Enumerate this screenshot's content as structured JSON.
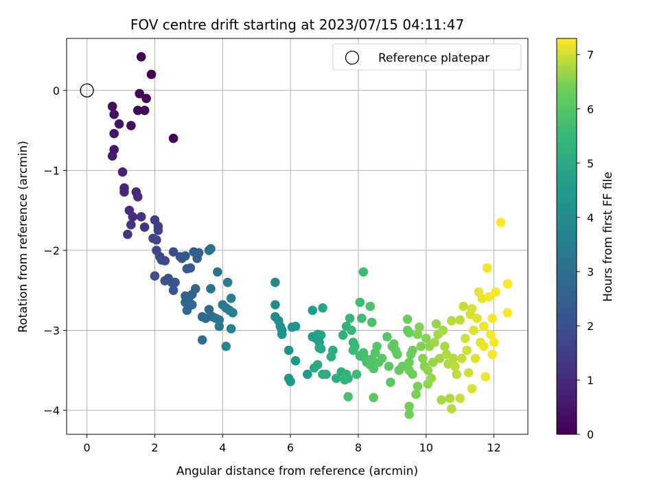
{
  "chart_data": {
    "type": "scatter",
    "title": "FOV centre drift starting at 2023/07/15 04:11:47",
    "xlabel": "Angular distance from reference (arcmin)",
    "ylabel": "Rotation from reference (arcmin)",
    "xlim": [
      -0.6,
      13.0
    ],
    "ylim": [
      -4.3,
      0.65
    ],
    "xticks": [
      0,
      2,
      4,
      6,
      8,
      10,
      12
    ],
    "yticks": [
      0,
      -1,
      -2,
      -3,
      -4
    ],
    "xtick_labels": [
      "0",
      "2",
      "4",
      "6",
      "8",
      "10",
      "12"
    ],
    "ytick_labels": [
      "0",
      "−1",
      "−2",
      "−3",
      "−4"
    ],
    "grid": true,
    "legend": {
      "placement": "top-right",
      "entries": [
        {
          "label": "Reference platepar",
          "marker": "open-circle"
        }
      ]
    },
    "reference_point": {
      "x": 0,
      "y": 0
    },
    "colorbar": {
      "label": "Hours from first FF file",
      "range": [
        0,
        7.3
      ],
      "ticks": [
        0,
        1,
        2,
        3,
        4,
        5,
        6,
        7
      ],
      "tick_labels": [
        "0",
        "1",
        "2",
        "3",
        "4",
        "5",
        "6",
        "7"
      ],
      "colormap": "viridis"
    },
    "series": [
      {
        "points": [
          [
            1.6,
            0.42,
            0.02
          ],
          [
            1.9,
            0.2,
            0.04
          ],
          [
            2.55,
            -0.6,
            0.06
          ],
          [
            1.55,
            -0.04,
            0.08
          ],
          [
            1.75,
            -0.1,
            0.1
          ],
          [
            1.7,
            -0.25,
            0.12
          ],
          [
            1.5,
            -0.25,
            0.14
          ],
          [
            1.3,
            -0.44,
            0.3
          ],
          [
            0.75,
            -0.2,
            0.35
          ],
          [
            0.8,
            -0.3,
            0.4
          ],
          [
            0.95,
            -0.42,
            0.45
          ],
          [
            0.8,
            -0.54,
            0.5
          ],
          [
            0.8,
            -0.74,
            0.55
          ],
          [
            0.75,
            -0.82,
            0.6
          ],
          [
            1.05,
            -1.02,
            0.8
          ],
          [
            1.1,
            -1.22,
            0.85
          ],
          [
            1.1,
            -1.27,
            0.9
          ],
          [
            1.45,
            -1.27,
            0.95
          ],
          [
            1.5,
            -1.33,
            1.0
          ],
          [
            1.25,
            -1.5,
            1.05
          ],
          [
            1.35,
            -1.58,
            1.1
          ],
          [
            1.6,
            -1.58,
            1.15
          ],
          [
            1.3,
            -1.68,
            1.2
          ],
          [
            1.7,
            -1.71,
            1.25
          ],
          [
            1.2,
            -1.8,
            1.3
          ],
          [
            2.0,
            -1.62,
            1.5
          ],
          [
            2.1,
            -1.7,
            1.55
          ],
          [
            2.1,
            -1.75,
            1.6
          ],
          [
            1.95,
            -1.85,
            1.65
          ],
          [
            2.05,
            -1.87,
            1.7
          ],
          [
            2.05,
            -2.0,
            1.75
          ],
          [
            2.15,
            -2.08,
            1.8
          ],
          [
            2.2,
            -2.12,
            1.85
          ],
          [
            2.3,
            -2.13,
            1.9
          ],
          [
            2.55,
            -2.02,
            1.95
          ],
          [
            2.0,
            -2.32,
            2.0
          ],
          [
            2.3,
            -2.38,
            2.05
          ],
          [
            2.4,
            -2.35,
            2.05
          ],
          [
            2.5,
            -2.4,
            2.1
          ],
          [
            2.6,
            -2.4,
            2.15
          ],
          [
            2.55,
            -2.5,
            2.15
          ],
          [
            2.75,
            -2.08,
            2.2
          ],
          [
            2.8,
            -2.1,
            2.25
          ],
          [
            2.9,
            -2.07,
            2.3
          ],
          [
            2.95,
            -2.23,
            2.35
          ],
          [
            3.05,
            -2.22,
            2.35
          ],
          [
            3.15,
            -2.02,
            2.4
          ],
          [
            3.3,
            -2.03,
            2.45
          ],
          [
            3.25,
            -2.1,
            2.5
          ],
          [
            2.9,
            -2.57,
            2.55
          ],
          [
            3.0,
            -2.6,
            2.55
          ],
          [
            3.1,
            -2.55,
            2.6
          ],
          [
            3.2,
            -2.48,
            2.6
          ],
          [
            2.9,
            -2.65,
            2.65
          ],
          [
            3.0,
            -2.65,
            2.65
          ],
          [
            3.1,
            -2.68,
            2.7
          ],
          [
            2.95,
            -2.75,
            2.7
          ],
          [
            3.4,
            -2.83,
            2.75
          ],
          [
            3.5,
            -2.85,
            2.8
          ],
          [
            3.6,
            -2.74,
            2.85
          ],
          [
            3.7,
            -2.83,
            2.9
          ],
          [
            3.4,
            -3.12,
            2.95
          ],
          [
            3.6,
            -2.0,
            3.0
          ],
          [
            3.65,
            -1.98,
            3.05
          ],
          [
            3.65,
            -2.48,
            3.1
          ],
          [
            3.85,
            -2.27,
            3.15
          ],
          [
            3.8,
            -2.85,
            3.2
          ],
          [
            3.9,
            -2.87,
            3.25
          ],
          [
            3.9,
            -2.95,
            3.3
          ],
          [
            4.0,
            -2.68,
            3.35
          ],
          [
            4.1,
            -2.72,
            3.4
          ],
          [
            4.15,
            -2.4,
            3.45
          ],
          [
            4.25,
            -2.6,
            3.5
          ],
          [
            4.2,
            -2.75,
            3.55
          ],
          [
            4.3,
            -2.78,
            3.6
          ],
          [
            4.25,
            -2.98,
            3.65
          ],
          [
            4.1,
            -3.2,
            3.7
          ],
          [
            5.55,
            -2.4,
            3.85
          ],
          [
            5.55,
            -2.68,
            3.9
          ],
          [
            5.55,
            -2.83,
            3.95
          ],
          [
            5.65,
            -2.88,
            4.0
          ],
          [
            5.7,
            -2.95,
            4.05
          ],
          [
            5.75,
            -3.0,
            4.1
          ],
          [
            5.75,
            -3.05,
            4.15
          ],
          [
            5.95,
            -3.25,
            4.2
          ],
          [
            6.05,
            -2.96,
            4.25
          ],
          [
            6.15,
            -2.95,
            4.3
          ],
          [
            6.15,
            -3.38,
            4.35
          ],
          [
            5.95,
            -3.6,
            4.4
          ],
          [
            6.0,
            -3.64,
            4.45
          ],
          [
            6.5,
            -3.55,
            4.5
          ],
          [
            6.65,
            -2.75,
            4.55
          ],
          [
            6.65,
            -3.08,
            4.6
          ],
          [
            6.75,
            -3.1,
            4.65
          ],
          [
            6.8,
            -3.05,
            4.7
          ],
          [
            6.85,
            -3.15,
            4.7
          ],
          [
            6.9,
            -3.06,
            4.75
          ],
          [
            6.95,
            -2.72,
            4.8
          ],
          [
            6.85,
            -3.22,
            4.85
          ],
          [
            6.9,
            -3.23,
            4.9
          ],
          [
            6.7,
            -3.47,
            4.95
          ],
          [
            6.8,
            -3.43,
            5.0
          ],
          [
            6.95,
            -3.55,
            5.0
          ],
          [
            7.05,
            -3.55,
            5.05
          ],
          [
            7.2,
            -3.33,
            5.1
          ],
          [
            7.25,
            -3.25,
            5.15
          ],
          [
            7.35,
            -3.6,
            5.15
          ],
          [
            7.5,
            -3.52,
            5.2
          ],
          [
            7.6,
            -3.62,
            5.25
          ],
          [
            7.55,
            -3.06,
            5.3
          ],
          [
            7.65,
            -2.95,
            5.3
          ],
          [
            7.65,
            -3.55,
            5.35
          ],
          [
            7.7,
            -3.6,
            5.4
          ],
          [
            7.75,
            -2.85,
            5.45
          ],
          [
            7.8,
            -3.0,
            5.45
          ],
          [
            7.85,
            -3.15,
            5.5
          ],
          [
            7.9,
            -3.2,
            5.5
          ],
          [
            7.85,
            -3.25,
            5.55
          ],
          [
            7.95,
            -3.55,
            5.6
          ],
          [
            8.05,
            -2.65,
            5.6
          ],
          [
            8.1,
            -2.85,
            5.65
          ],
          [
            8.15,
            -2.27,
            5.65
          ],
          [
            8.05,
            -3.32,
            5.7
          ],
          [
            8.15,
            -3.28,
            5.75
          ],
          [
            8.2,
            -3.35,
            5.75
          ],
          [
            8.25,
            -3.4,
            5.8
          ],
          [
            7.7,
            -3.83,
            5.8
          ],
          [
            8.35,
            -2.7,
            5.85
          ],
          [
            8.4,
            -2.9,
            5.85
          ],
          [
            8.4,
            -3.36,
            5.9
          ],
          [
            8.35,
            -3.43,
            5.9
          ],
          [
            8.45,
            -3.48,
            5.95
          ],
          [
            8.5,
            -3.28,
            5.95
          ],
          [
            8.55,
            -3.2,
            6.0
          ],
          [
            8.6,
            -3.4,
            6.0
          ],
          [
            8.7,
            -3.35,
            6.05
          ],
          [
            8.85,
            -3.08,
            6.05
          ],
          [
            8.9,
            -3.45,
            6.1
          ],
          [
            8.45,
            -3.84,
            6.1
          ],
          [
            8.95,
            -3.65,
            6.1
          ],
          [
            9.0,
            -3.2,
            6.15
          ],
          [
            9.05,
            -3.17,
            6.15
          ],
          [
            9.1,
            -3.25,
            6.2
          ],
          [
            9.15,
            -3.3,
            6.2
          ],
          [
            9.2,
            -3.5,
            6.2
          ],
          [
            9.3,
            -3.45,
            6.25
          ],
          [
            9.45,
            -3.0,
            6.25
          ],
          [
            9.5,
            -3.03,
            6.25
          ],
          [
            9.45,
            -2.86,
            6.3
          ],
          [
            9.5,
            -3.4,
            6.3
          ],
          [
            9.55,
            -3.3,
            6.3
          ],
          [
            9.6,
            -3.25,
            6.35
          ],
          [
            9.5,
            -3.5,
            6.35
          ],
          [
            9.6,
            -3.55,
            6.35
          ],
          [
            9.5,
            -3.95,
            6.4
          ],
          [
            9.5,
            -4.05,
            6.4
          ],
          [
            9.7,
            -3.8,
            6.45
          ],
          [
            9.75,
            -3.7,
            6.45
          ],
          [
            9.75,
            -3.05,
            6.5
          ],
          [
            9.8,
            -2.96,
            6.5
          ],
          [
            9.85,
            -3.2,
            6.5
          ],
          [
            9.9,
            -3.35,
            6.55
          ],
          [
            9.95,
            -3.45,
            6.55
          ],
          [
            10.0,
            -3.1,
            6.55
          ],
          [
            10.05,
            -3.5,
            6.6
          ],
          [
            10.05,
            -3.67,
            6.6
          ],
          [
            10.1,
            -3.2,
            6.6
          ],
          [
            10.15,
            -3.6,
            6.65
          ],
          [
            10.2,
            -3.4,
            6.65
          ],
          [
            10.3,
            -2.92,
            6.65
          ],
          [
            10.25,
            -3.15,
            6.7
          ],
          [
            10.35,
            -3.05,
            6.7
          ],
          [
            10.4,
            -3.35,
            6.7
          ],
          [
            10.45,
            -3.87,
            6.75
          ],
          [
            10.5,
            -3.0,
            6.75
          ],
          [
            10.55,
            -3.2,
            6.75
          ],
          [
            10.6,
            -3.3,
            6.8
          ],
          [
            10.65,
            -3.42,
            6.8
          ],
          [
            10.7,
            -3.85,
            6.8
          ],
          [
            10.75,
            -3.98,
            6.85
          ],
          [
            10.75,
            -2.88,
            6.85
          ],
          [
            10.8,
            -3.35,
            6.85
          ],
          [
            10.85,
            -3.45,
            6.9
          ],
          [
            10.9,
            -3.55,
            6.9
          ],
          [
            11.0,
            -2.87,
            6.9
          ],
          [
            11.0,
            -3.85,
            6.95
          ],
          [
            11.05,
            -3.35,
            6.95
          ],
          [
            11.1,
            -2.7,
            6.95
          ],
          [
            11.15,
            -3.1,
            7.0
          ],
          [
            11.2,
            -3.25,
            7.0
          ],
          [
            11.25,
            -3.53,
            7.0
          ],
          [
            11.3,
            -2.8,
            7.05
          ],
          [
            11.35,
            -3.73,
            7.05
          ],
          [
            11.35,
            -2.73,
            7.05
          ],
          [
            11.4,
            -3.0,
            7.1
          ],
          [
            11.45,
            -3.35,
            7.1
          ],
          [
            11.5,
            -2.85,
            7.1
          ],
          [
            11.55,
            -2.52,
            7.15
          ],
          [
            11.6,
            -3.15,
            7.15
          ],
          [
            11.65,
            -2.6,
            7.15
          ],
          [
            11.7,
            -3.2,
            7.2
          ],
          [
            11.75,
            -3.58,
            7.2
          ],
          [
            11.8,
            -2.22,
            7.2
          ],
          [
            11.85,
            -2.58,
            7.25
          ],
          [
            11.9,
            -3.05,
            7.25
          ],
          [
            11.95,
            -2.85,
            7.25
          ],
          [
            12.0,
            -3.15,
            7.27
          ],
          [
            12.05,
            -2.52,
            7.28
          ],
          [
            12.2,
            -1.65,
            7.3
          ],
          [
            12.4,
            -2.42,
            7.3
          ],
          [
            12.4,
            -2.78,
            7.3
          ],
          [
            11.7,
            -2.95,
            7.22
          ],
          [
            11.95,
            -3.3,
            7.24
          ]
        ]
      }
    ]
  }
}
